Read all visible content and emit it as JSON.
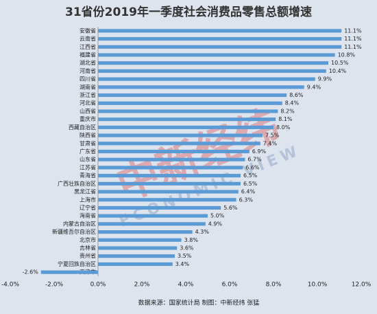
{
  "chart_data": {
    "type": "barh",
    "title": "31省份2019年一季度社会消费品零售总额增速",
    "source": "数据来源：国家统计局  制图：中新经纬  张猛",
    "watermark": "中新经纬",
    "watermark_sub": "ECONOMIC VIEW",
    "categories": [
      "安徽省",
      "云南省",
      "江西省",
      "福建省",
      "湖北省",
      "河南省",
      "四川省",
      "湖南省",
      "浙江省",
      "河北省",
      "山西省",
      "重庆市",
      "西藏自治区",
      "陕西省",
      "甘肃省",
      "广东省",
      "山东省",
      "江苏省",
      "青海省",
      "广西壮族自治区",
      "黑龙江省",
      "上海市",
      "辽宁省",
      "海南省",
      "内蒙古自治区",
      "新疆维吾尔自治区",
      "北京市",
      "吉林省",
      "贵州省",
      "宁夏回族自治区",
      "天津市"
    ],
    "values": [
      11.1,
      11.1,
      11.1,
      10.8,
      10.5,
      10.4,
      9.9,
      9.4,
      8.6,
      8.4,
      8.2,
      8.1,
      8.0,
      7.5,
      7.4,
      6.9,
      6.7,
      6.6,
      6.5,
      6.5,
      6.4,
      6.3,
      5.6,
      5.0,
      4.9,
      4.3,
      3.8,
      3.6,
      3.5,
      3.4,
      -2.6
    ],
    "value_labels": [
      "11.1%",
      "11.1%",
      "11.1%",
      "10.8%",
      "10.5%",
      "10.4%",
      "9.9%",
      "9.4%",
      "8.6%",
      "8.4%",
      "8.2%",
      "8.1%",
      "8.0%",
      "7.5%",
      "7.4%",
      "6.9%",
      "6.7%",
      "6.6%",
      "6.5%",
      "6.5%",
      "6.4%",
      "6.3%",
      "5.6%",
      "5.0%",
      "4.9%",
      "4.3%",
      "3.8%",
      "3.6%",
      "3.5%",
      "3.4%",
      "-2.6%"
    ],
    "color": "#5b9bd5",
    "xlim": [
      -4,
      12
    ],
    "xticks": [
      {
        "value": -4,
        "label": "-4.0%"
      },
      {
        "value": -2,
        "label": "-2.0%"
      },
      {
        "value": 0,
        "label": "0.0%"
      },
      {
        "value": 2,
        "label": "2.0%"
      },
      {
        "value": 4,
        "label": "4.0%"
      },
      {
        "value": 6,
        "label": "6.0%"
      },
      {
        "value": 8,
        "label": "8.0%"
      },
      {
        "value": 10,
        "label": "10.0%"
      },
      {
        "value": 12,
        "label": "12.0%"
      }
    ]
  }
}
